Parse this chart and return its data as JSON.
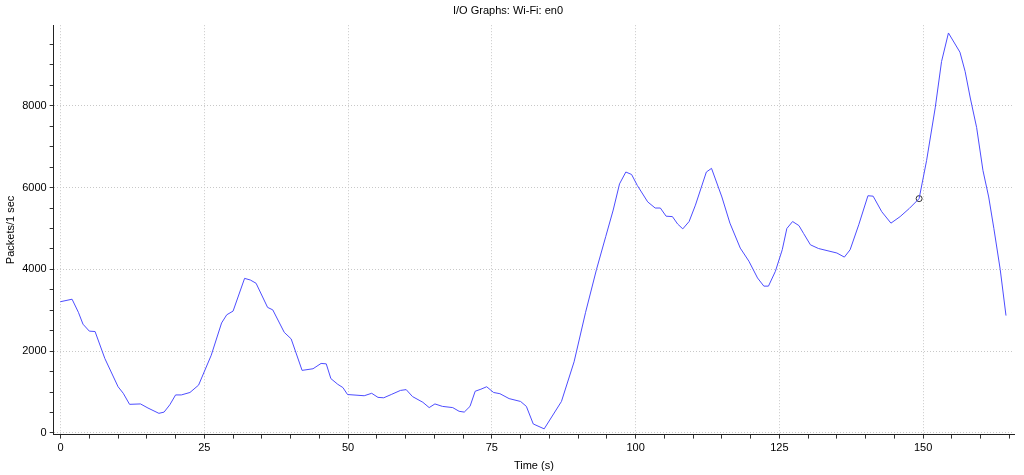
{
  "chart_data": {
    "type": "line",
    "title": "I/O Graphs: Wi-Fi: en0",
    "xlabel": "Time (s)",
    "ylabel": "Packets/1 sec",
    "xlim": [
      -1.2,
      165.8
    ],
    "ylim": [
      -40,
      9970
    ],
    "xticks": [
      0,
      {
        "value": 5,
        "label": null
      },
      {
        "value": 10,
        "label": null
      },
      {
        "value": 15,
        "label": null
      },
      {
        "value": 20,
        "label": null
      },
      25,
      {
        "value": 30,
        "label": null
      },
      {
        "value": 35,
        "label": null
      },
      {
        "value": 40,
        "label": null
      },
      {
        "value": 45,
        "label": null
      },
      50,
      {
        "value": 55,
        "label": null
      },
      {
        "value": 60,
        "label": null
      },
      {
        "value": 65,
        "label": null
      },
      {
        "value": 70,
        "label": null
      },
      75,
      {
        "value": 80,
        "label": null
      },
      {
        "value": 85,
        "label": null
      },
      {
        "value": 90,
        "label": null
      },
      {
        "value": 95,
        "label": null
      },
      100,
      {
        "value": 105,
        "label": null
      },
      {
        "value": 110,
        "label": null
      },
      {
        "value": 115,
        "label": null
      },
      {
        "value": 120,
        "label": null
      },
      125,
      {
        "value": 130,
        "label": null
      },
      {
        "value": 135,
        "label": null
      },
      {
        "value": 140,
        "label": null
      },
      {
        "value": 145,
        "label": null
      },
      150,
      {
        "value": 155,
        "label": null
      },
      {
        "value": 160,
        "label": null
      },
      {
        "value": 165,
        "label": null
      }
    ],
    "yticks": [
      0,
      {
        "value": 500,
        "label": null
      },
      {
        "value": 1000,
        "label": null
      },
      {
        "value": 1500,
        "label": null
      },
      2000,
      {
        "value": 2500,
        "label": null
      },
      {
        "value": 3000,
        "label": null
      },
      {
        "value": 3500,
        "label": null
      },
      4000,
      {
        "value": 4500,
        "label": null
      },
      {
        "value": 5000,
        "label": null
      },
      {
        "value": 5500,
        "label": null
      },
      6000,
      {
        "value": 6500,
        "label": null
      },
      {
        "value": 7000,
        "label": null
      },
      {
        "value": 7500,
        "label": null
      },
      8000,
      {
        "value": 8500,
        "label": null
      },
      {
        "value": 9000,
        "label": null
      },
      {
        "value": 9500,
        "label": null
      }
    ],
    "grid": true,
    "series": [
      {
        "color": "#4d4dff",
        "marker": "none",
        "x": [
          0,
          2.0,
          3.1,
          3.9,
          5.0,
          6.0,
          7.7,
          10.0,
          10.9,
          12.0,
          13.9,
          15.2,
          17.1,
          18.0,
          19.0,
          20.0,
          21.0,
          22.5,
          24.0,
          26.2,
          28.0,
          28.9,
          30.0,
          32.0,
          33.0,
          34.0,
          36.0,
          36.9,
          38.9,
          40.1,
          42.0,
          43.9,
          45.3,
          46.2,
          47.0,
          48.2,
          49.1,
          49.9,
          52.8,
          54.1,
          55.2,
          56.2,
          57.5,
          59.1,
          60.1,
          61.2,
          63.0,
          64.1,
          65.1,
          66.4,
          68.2,
          69.3,
          70.2,
          71.2,
          72.1,
          73.1,
          74.1,
          75.3,
          76.4,
          78.0,
          80.0,
          81.0,
          82.2,
          84.1,
          87.1,
          89.3,
          91.3,
          93.2,
          94.8,
          96.1,
          97.2,
          98.3,
          99.3,
          100.3,
          102.1,
          103.4,
          104.3,
          105.3,
          106.4,
          107.3,
          108.2,
          109.3,
          110.4,
          112.3,
          113.2,
          115.0,
          116.4,
          118.2,
          119.7,
          121.2,
          122.3,
          123.1,
          124.3,
          125.5,
          126.3,
          127.3,
          128.4,
          129.2,
          130.4,
          131.8,
          135.0,
          136.3,
          137.3,
          138.8,
          140.4,
          141.3,
          142.8,
          144.4,
          146.0,
          147.6,
          149.3,
          150.6,
          152.1,
          153.2,
          154.4,
          156.4,
          157.3,
          158.2,
          159.3,
          160.4,
          161.4,
          162.3,
          163.4,
          164.4
        ],
        "values": [
          3210,
          3270,
          2950,
          2660,
          2490,
          2480,
          1820,
          1130,
          970,
          700,
          710,
          610,
          480,
          510,
          690,
          930,
          930,
          990,
          1170,
          1900,
          2690,
          2890,
          2980,
          3780,
          3740,
          3660,
          3070,
          3010,
          2460,
          2300,
          1530,
          1570,
          1700,
          1690,
          1330,
          1190,
          1110,
          940,
          910,
          970,
          870,
          860,
          940,
          1040,
          1060,
          890,
          750,
          620,
          710,
          650,
          620,
          530,
          510,
          650,
          1020,
          1070,
          1130,
          990,
          960,
          840,
          770,
          650,
          220,
          100,
          770,
          1740,
          2950,
          4000,
          4800,
          5450,
          6090,
          6380,
          6320,
          6050,
          5650,
          5500,
          5500,
          5300,
          5290,
          5110,
          4990,
          5170,
          5570,
          6380,
          6470,
          5770,
          5130,
          4520,
          4200,
          3790,
          3590,
          3590,
          3950,
          4480,
          5000,
          5170,
          5070,
          4880,
          4600,
          4510,
          4400,
          4300,
          4480,
          5090,
          5800,
          5790,
          5410,
          5130,
          5290,
          5490,
          5730,
          6660,
          7950,
          9080,
          9780,
          9310,
          8840,
          8190,
          7470,
          6420,
          5770,
          5000,
          4000,
          2880
        ]
      },
      {
        "type": "scatter",
        "color": "#333333",
        "marker": "circle",
        "x": [
          149.3
        ],
        "values": [
          5730
        ]
      }
    ]
  }
}
